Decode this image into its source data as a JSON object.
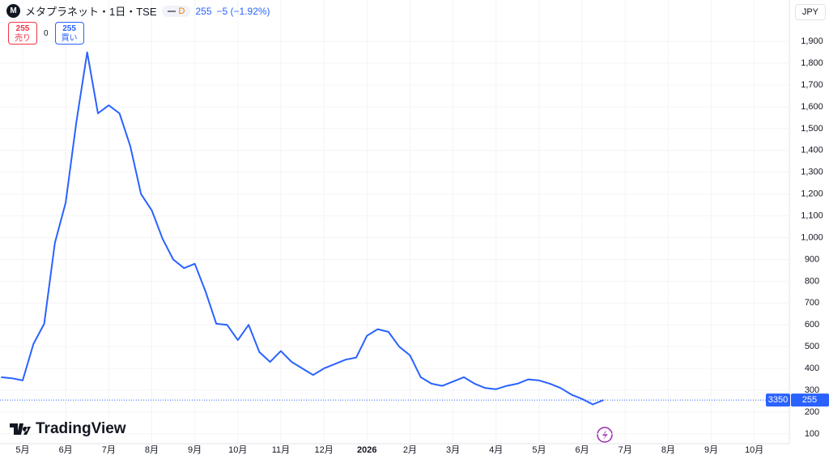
{
  "header": {
    "symbol": "メタプラネット・1日・TSE",
    "badge": "D",
    "last": "255",
    "change": "−5 (−1.92%)"
  },
  "order": {
    "sell_price": "255",
    "sell_label": "売り",
    "spread": "0",
    "buy_price": "255",
    "buy_label": "買い"
  },
  "currency": "JPY",
  "brand": "TradingView",
  "price_badge": "3350",
  "chart_data": {
    "type": "line",
    "color": "#2962ff",
    "categories": [
      null,
      null,
      "5月",
      null,
      null,
      null,
      "6月",
      null,
      null,
      null,
      "7月",
      null,
      null,
      null,
      "8月",
      null,
      null,
      null,
      "9月",
      null,
      null,
      null,
      "10月",
      null,
      null,
      null,
      "11月",
      null,
      null,
      null,
      "12月",
      null,
      null,
      null,
      "2026",
      null,
      null,
      null,
      "2月",
      null,
      null,
      null,
      "3月",
      null,
      null,
      null,
      "4月",
      null,
      null,
      null,
      "5月",
      null,
      null,
      null,
      "6月",
      null,
      null,
      null,
      "7月",
      null,
      null,
      null,
      "8月",
      null,
      null,
      null,
      "9月",
      null,
      null,
      null,
      "10月",
      null,
      null,
      null,
      null
    ],
    "values": [
      360,
      355,
      345,
      512,
      605,
      976,
      1160,
      1532,
      1850,
      1570,
      1607,
      1570,
      1420,
      1200,
      1125,
      995,
      900,
      860,
      880,
      753,
      605,
      600,
      530,
      600,
      475,
      430,
      480,
      430,
      400,
      370,
      400,
      420,
      440,
      450,
      550,
      580,
      568,
      500,
      460,
      360,
      330,
      320,
      340,
      360,
      330,
      310,
      305,
      320,
      330,
      350,
      345,
      330,
      310,
      280,
      260,
      235,
      255,
      null,
      null,
      null,
      null,
      null,
      null,
      null,
      null,
      null,
      null,
      null,
      null,
      null,
      null,
      null,
      null,
      null,
      null
    ],
    "last_price": 255,
    "ylim": [
      55,
      2090
    ],
    "yticks": [
      100,
      200,
      300,
      400,
      500,
      600,
      700,
      800,
      900,
      {
        "value": 1000,
        "label": "1,000"
      },
      {
        "value": 1100,
        "label": "1,100"
      },
      {
        "value": 1200,
        "label": "1,200"
      },
      {
        "value": 1300,
        "label": "1,300"
      },
      {
        "value": 1400,
        "label": "1,400"
      },
      {
        "value": 1500,
        "label": "1,500"
      },
      {
        "value": 1600,
        "label": "1,600"
      },
      {
        "value": 1700,
        "label": "1,700"
      },
      {
        "value": 1800,
        "label": "1,800"
      },
      {
        "value": 1900,
        "label": "1,900"
      }
    ],
    "grid": true
  }
}
